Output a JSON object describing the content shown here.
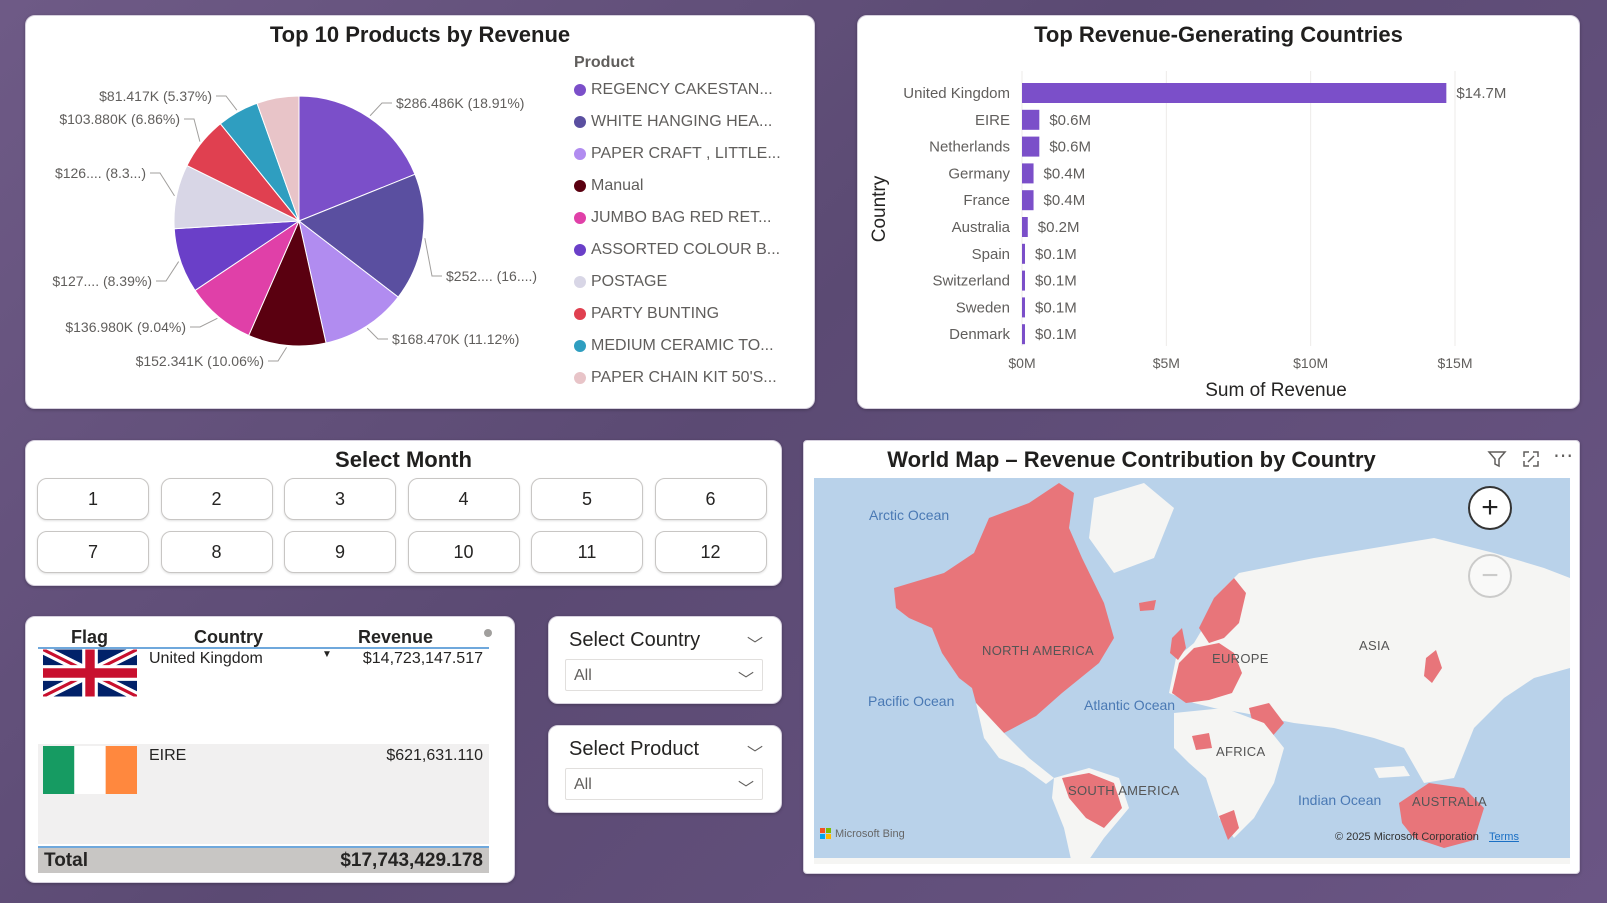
{
  "pie": {
    "title": "Top 10 Products by Revenue",
    "legend_title": "Product",
    "items": [
      {
        "label": "REGENCY CAKESTAN...",
        "color": "#7b4fc9"
      },
      {
        "label": "WHITE HANGING HEA...",
        "color": "#5a4fa0"
      },
      {
        "label": "PAPER CRAFT , LITTLE...",
        "color": "#b18cf0"
      },
      {
        "label": "Manual",
        "color": "#5a0010"
      },
      {
        "label": "JUMBO BAG RED RET...",
        "color": "#e040a8"
      },
      {
        "label": "ASSORTED COLOUR B...",
        "color": "#6a3fc8"
      },
      {
        "label": "POSTAGE",
        "color": "#d8d6e6"
      },
      {
        "label": "PARTY BUNTING",
        "color": "#e04050"
      },
      {
        "label": "MEDIUM CERAMIC TO...",
        "color": "#2f9ec0"
      },
      {
        "label": "PAPER CHAIN KIT 50'S...",
        "color": "#e8c4c8"
      }
    ],
    "data_labels": [
      "$286.486K (18.91%)",
      "$252.... (16....)",
      "$168.470K (11.12%)",
      "$152.341K (10.06%)",
      "$136.980K (9.04%)",
      "$127.... (8.39%)",
      "$126.... (8.3...)",
      "$103.880K (6.86%)",
      "$81.417K (5.37%)"
    ]
  },
  "chart_data": {
    "type": "bar",
    "title": "Top Revenue-Generating Countries",
    "xlabel": "Sum of Revenue",
    "ylabel": "Country",
    "categories": [
      "United Kingdom",
      "EIRE",
      "Netherlands",
      "Germany",
      "France",
      "Australia",
      "Spain",
      "Switzerland",
      "Sweden",
      "Denmark"
    ],
    "values": [
      14.7,
      0.6,
      0.6,
      0.4,
      0.4,
      0.2,
      0.1,
      0.1,
      0.1,
      0.1
    ],
    "value_labels": [
      "$14.7M",
      "$0.6M",
      "$0.6M",
      "$0.4M",
      "$0.4M",
      "$0.2M",
      "$0.1M",
      "$0.1M",
      "$0.1M",
      "$0.1M"
    ],
    "xticks": [
      "$0M",
      "$5M",
      "$10M",
      "$15M"
    ],
    "xlim": [
      0,
      15
    ],
    "color": "#7b4fc9"
  },
  "month_slicer": {
    "title": "Select Month",
    "months": [
      "1",
      "2",
      "3",
      "4",
      "5",
      "6",
      "7",
      "8",
      "9",
      "10",
      "11",
      "12"
    ]
  },
  "table": {
    "headers": {
      "flag": "Flag",
      "country": "Country",
      "revenue": "Revenue"
    },
    "rows": [
      {
        "country": "United Kingdom",
        "revenue": "$14,723,147.517"
      },
      {
        "country": "EIRE",
        "revenue": "$621,631.110"
      }
    ],
    "total_label": "Total",
    "total_value": "$17,743,429.178"
  },
  "country_filter": {
    "title": "Select Country",
    "value": "All"
  },
  "product_filter": {
    "title": "Select Product",
    "value": "All"
  },
  "map": {
    "title": "World Map – Revenue Contribution by Country",
    "oceans": [
      "Arctic Ocean",
      "Pacific Ocean",
      "Atlantic Ocean",
      "Indian Ocean"
    ],
    "continents": [
      "NORTH AMERICA",
      "EUROPE",
      "ASIA",
      "AFRICA",
      "SOUTH AMERICA",
      "AUSTRALIA"
    ],
    "attribution": "Microsoft Bing",
    "copyright": "© 2025 Microsoft Corporation",
    "terms": "Terms",
    "highlight_color": "#e8757a"
  }
}
